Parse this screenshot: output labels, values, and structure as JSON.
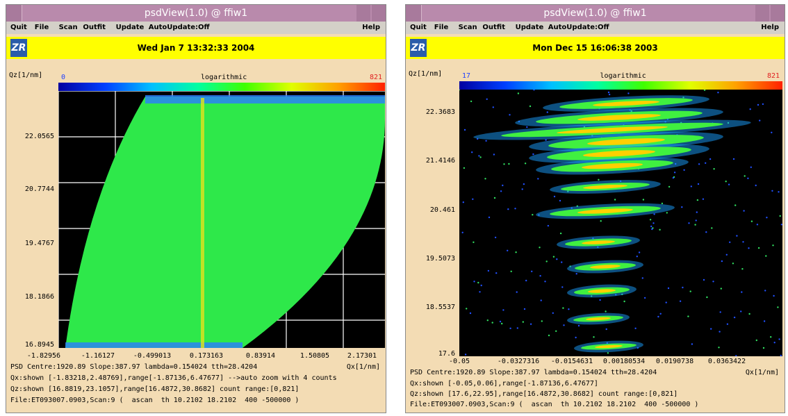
{
  "windows": [
    {
      "title": "psdView(1.0) @ ffiw1",
      "menu": [
        "Quit",
        "File",
        "Scan",
        "Outfit",
        "Update",
        "AutoUpdate:Off"
      ],
      "help": "Help",
      "logo": "ZR",
      "date": "Wed Jan 7 13:32:33 2004",
      "colorbar": {
        "min": "0",
        "label": "logarithmic",
        "max": "821"
      },
      "y_label": "Qz[1/nm]",
      "x_label": "Qx[1/nm]",
      "y_ticks": [
        "22.0565",
        "20.7744",
        "19.4767",
        "18.1866",
        "16.8945"
      ],
      "x_ticks": [
        "-1.82956",
        "-1.16127",
        "-0.499013",
        "0.173163",
        "0.83914",
        "1.50805",
        "2.17301"
      ],
      "status": [
        "PSD Centre:1920.89 Slope:387.97 lambda=0.154024 tth=28.4204",
        "Qx:shown [-1.83218,2.48769],range[-1.87136,6.47677] -->auto zoom with 4 counts",
        "Qz:shown [16.8819,23.1057],range[16.4872,30.8682] count range:[0,821]",
        "File:ET093007.0903,Scan:9 (  ascan  th 10.2102 18.2102  400 -500000 )"
      ]
    },
    {
      "title": "psdView(1.0) @ ffiw1",
      "menu": [
        "Quit",
        "File",
        "Scan",
        "Outfit",
        "Update",
        "AutoUpdate:Off"
      ],
      "help": "Help",
      "logo": "ZR",
      "date": "Mon Dec 15 16:06:38 2003",
      "colorbar": {
        "min": "17",
        "label": "logarithmic",
        "max": "821"
      },
      "y_label": "Qz[1/nm]",
      "x_label": "Qx[1/nm]",
      "y_ticks": [
        "22.3683",
        "21.4146",
        "20.461",
        "19.5073",
        "18.5537",
        "17.6"
      ],
      "x_ticks": [
        "-0.05",
        "-0.0327316",
        "-0.0154631",
        "0.00180534",
        "0.0190738",
        "0.0363422"
      ],
      "status": [
        "PSD Centre:1920.89 Slope:387.97 lambda=0.154024 tth=28.4204",
        "Qx:shown [-0.05,0.06],range[-1.87136,6.47677]",
        "Qz:shown [17.6,22.95],range[16.4872,30.8682] count range:[0,821]",
        "File:ET093007.0903,Scan:9 (  ascan  th 10.2102 18.2102  400 -500000 )"
      ]
    }
  ]
}
